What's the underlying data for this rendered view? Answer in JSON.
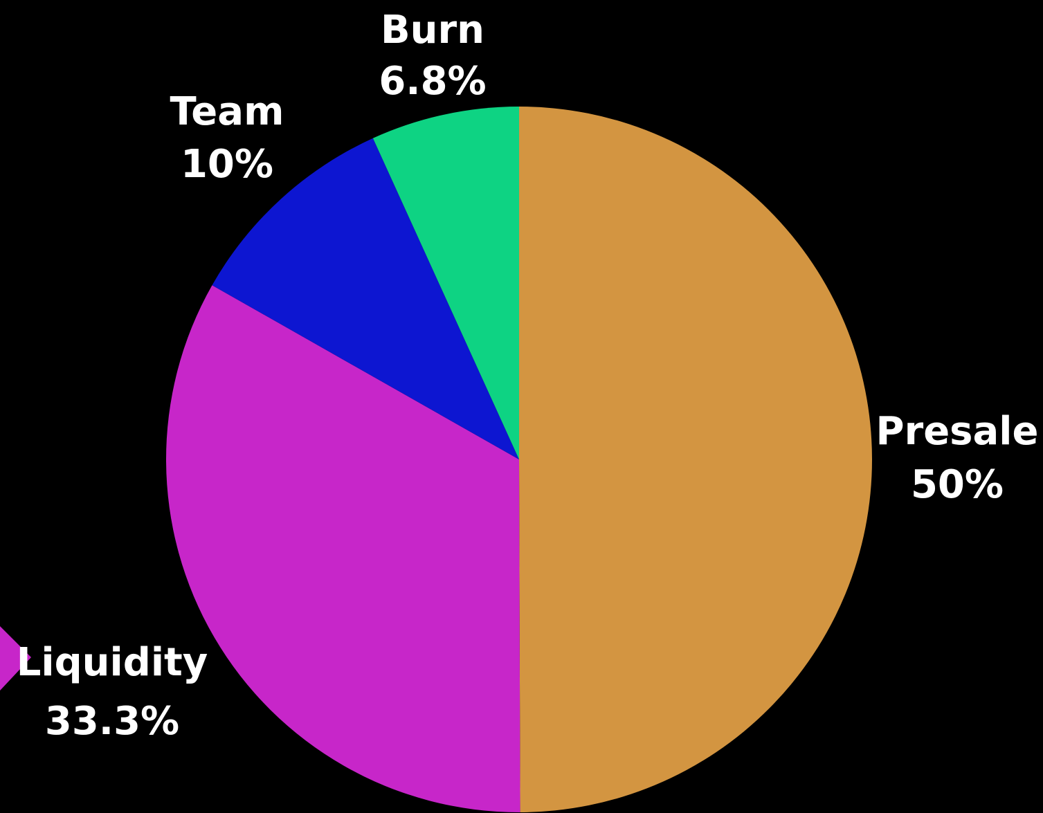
{
  "chart_data": {
    "type": "pie",
    "slices": [
      {
        "label": "Presale",
        "value": 50.0,
        "value_label": "50%",
        "color": "#d39541"
      },
      {
        "label": "Liquidity",
        "value": 33.3,
        "value_label": "33.3%",
        "color": "#c726c9"
      },
      {
        "label": "Team",
        "value": 10.0,
        "value_label": "10%",
        "color": "#0d16d1"
      },
      {
        "label": "Burn",
        "value": 6.8,
        "value_label": "6.8%",
        "color": "#0ed383"
      }
    ],
    "start_angle": "12 o'clock",
    "direction": "clockwise",
    "legend": "none",
    "background": "#000000"
  }
}
